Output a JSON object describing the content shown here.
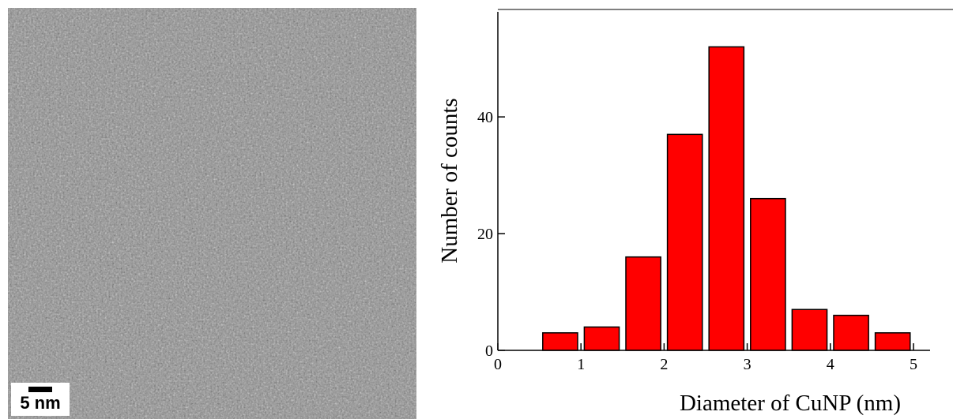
{
  "image": {
    "scale_bar_label": "5 nm"
  },
  "chart_data": {
    "type": "histogram",
    "xlabel": "Diameter of CuNP (nm)",
    "ylabel": "Number of counts",
    "bins": [
      0.5,
      1.0,
      1.5,
      2.0,
      2.5,
      3.0,
      3.5,
      4.0,
      4.5,
      5.0
    ],
    "values": [
      3,
      4,
      16,
      37,
      52,
      26,
      7,
      6,
      3
    ],
    "color": "#ff0000",
    "xlim": [
      0,
      5.2
    ],
    "xticks": [
      0,
      1,
      2,
      3,
      4,
      5
    ],
    "ylim": [
      0,
      58
    ],
    "yticks": [
      0,
      20,
      40
    ]
  }
}
